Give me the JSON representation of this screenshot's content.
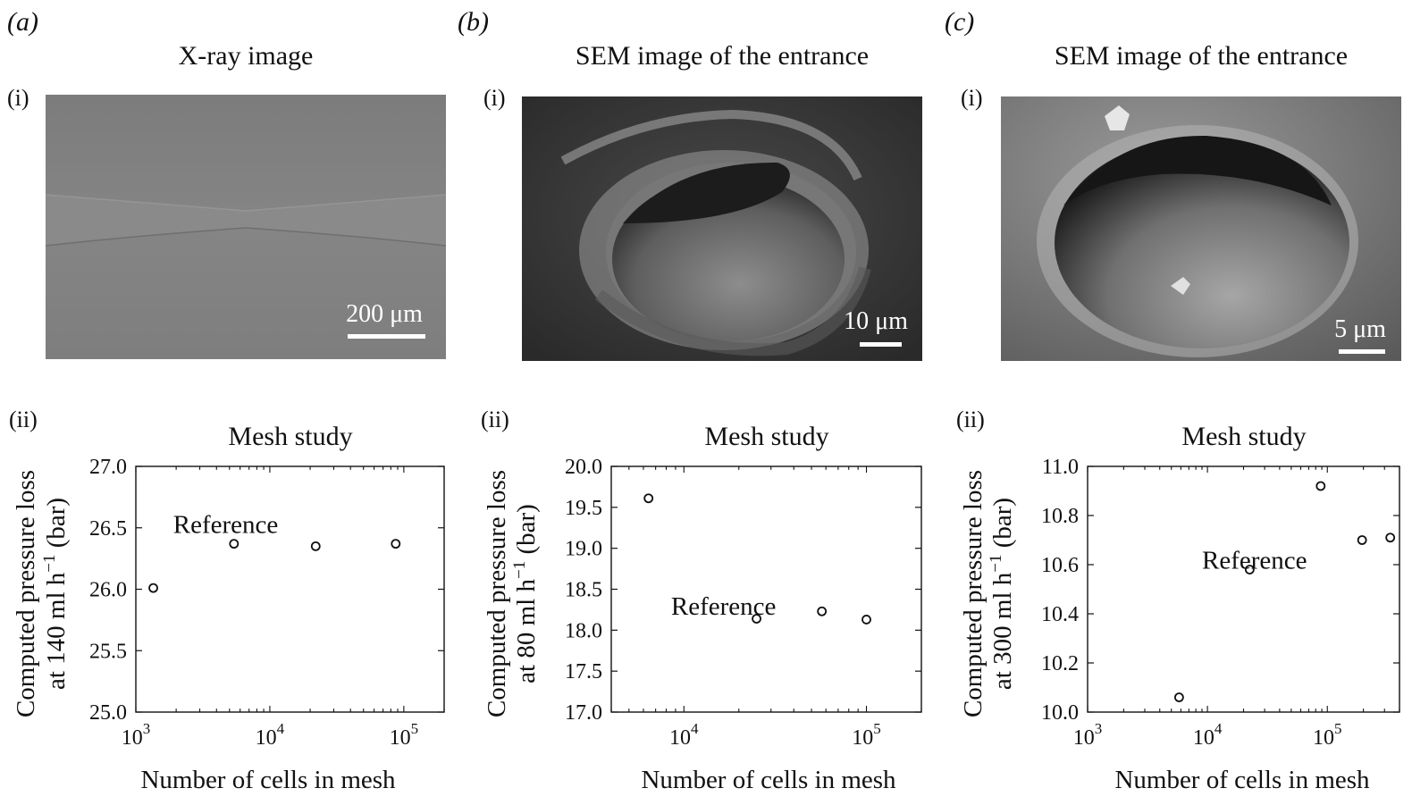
{
  "figure": {
    "panels": [
      {
        "letter": "(a)",
        "image_title": "X-ray image",
        "image_sublabel": "(i)",
        "scale_bar": "200 μm",
        "plot_sublabel": "(ii)"
      },
      {
        "letter": "(b)",
        "image_title": "SEM image of the entrance",
        "image_sublabel": "(i)",
        "scale_bar": "10 μm",
        "plot_sublabel": "(ii)"
      },
      {
        "letter": "(c)",
        "image_title": "SEM image of the entrance",
        "image_sublabel": "(i)",
        "scale_bar": "5 μm",
        "plot_sublabel": "(ii)"
      }
    ]
  },
  "chart_data": [
    {
      "type": "scatter",
      "title": "Mesh study",
      "xlabel": "Number of cells in mesh",
      "ylabel_line1": "Computed pressure loss",
      "ylabel_line2_pre": "at 140 ml h",
      "ylabel_sup": "−1",
      "ylabel_line2_post": " (bar)",
      "xscale": "log",
      "xlim": [
        1000,
        200000
      ],
      "ylim": [
        25.0,
        27.0
      ],
      "xticks": [
        1000,
        10000,
        100000
      ],
      "xtick_labels": [
        {
          "base": "10",
          "exp": "3"
        },
        {
          "base": "10",
          "exp": "4"
        },
        {
          "base": "10",
          "exp": "5"
        }
      ],
      "yticks": [
        25.0,
        25.5,
        26.0,
        26.5,
        27.0
      ],
      "ytick_labels": [
        "25.0",
        "25.5",
        "26.0",
        "26.5",
        "27.0"
      ],
      "points": [
        [
          1350,
          26.01
        ],
        [
          5400,
          26.37
        ],
        [
          22000,
          26.35
        ],
        [
          87000,
          26.37
        ]
      ],
      "annotation": "Reference",
      "annotation_anchor": [
        1900,
        26.53
      ],
      "grid": false
    },
    {
      "type": "scatter",
      "title": "Mesh study",
      "xlabel": "Number of cells in mesh",
      "ylabel_line1": "Computed pressure loss",
      "ylabel_line2_pre": "at 80 ml h",
      "ylabel_sup": "−1",
      "ylabel_line2_post": " (bar)",
      "xscale": "log",
      "xlim": [
        4000,
        200000
      ],
      "ylim": [
        17.0,
        20.0
      ],
      "xticks": [
        10000,
        100000
      ],
      "xtick_labels": [
        {
          "base": "10",
          "exp": "4"
        },
        {
          "base": "10",
          "exp": "5"
        }
      ],
      "yticks": [
        17.0,
        17.5,
        18.0,
        18.5,
        19.0,
        19.5,
        20.0
      ],
      "ytick_labels": [
        "17.0",
        "17.5",
        "18.0",
        "18.5",
        "19.0",
        "19.5",
        "20.0"
      ],
      "points": [
        [
          6400,
          19.61
        ],
        [
          25000,
          18.14
        ],
        [
          57000,
          18.23
        ],
        [
          100000,
          18.13
        ]
      ],
      "annotation": "Reference",
      "annotation_anchor": [
        8500,
        18.3
      ],
      "grid": false
    },
    {
      "type": "scatter",
      "title": "Mesh study",
      "xlabel": "Number of cells in mesh",
      "ylabel_line1": "Computed pressure loss",
      "ylabel_line2_pre": "at 300 ml h",
      "ylabel_sup": "−1",
      "ylabel_line2_post": " (bar)",
      "xscale": "log",
      "xlim": [
        1000,
        400000
      ],
      "ylim": [
        10.0,
        11.0
      ],
      "xticks": [
        1000,
        10000,
        100000
      ],
      "xtick_labels": [
        {
          "base": "10",
          "exp": "3"
        },
        {
          "base": "10",
          "exp": "4"
        },
        {
          "base": "10",
          "exp": "5"
        }
      ],
      "yticks": [
        10.0,
        10.2,
        10.4,
        10.6,
        10.8,
        11.0
      ],
      "ytick_labels": [
        "10.0",
        "10.2",
        "10.4",
        "10.6",
        "10.8",
        "11.0"
      ],
      "points": [
        [
          5800,
          10.06
        ],
        [
          22500,
          10.58
        ],
        [
          88000,
          10.92
        ],
        [
          195000,
          10.7
        ],
        [
          335000,
          10.71
        ]
      ],
      "annotation": "Reference",
      "annotation_anchor": [
        9000,
        10.62
      ],
      "grid": false
    }
  ]
}
